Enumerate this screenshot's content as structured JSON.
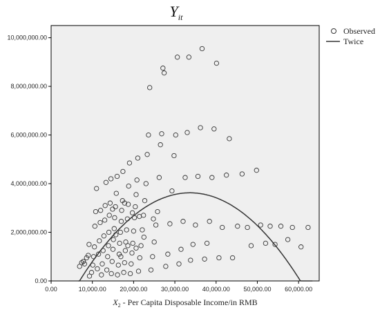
{
  "chart_data": {
    "type": "scatter",
    "title": "Y",
    "title_subscript": "it",
    "xlabel_var": "X",
    "xlabel_subscript": "2",
    "xlabel": " - Per Capita Disposable Income/in RMB",
    "ylabel": "",
    "xlim": [
      0,
      65000
    ],
    "ylim": [
      0,
      10500000
    ],
    "x_ticks": [
      0,
      10000,
      20000,
      30000,
      40000,
      50000,
      60000
    ],
    "x_tick_labels": [
      "0.00",
      "10,000.00",
      "20,000.00",
      "30,000.00",
      "40,000.00",
      "50,000.00",
      "60,000.00"
    ],
    "y_ticks": [
      0,
      2000000,
      4000000,
      6000000,
      8000000,
      10000000
    ],
    "y_tick_labels": [
      "0.00",
      "2,000,000.00",
      "4,000,000.00",
      "6,000,000.00",
      "8,000,000.00",
      "10,000,000.00"
    ],
    "grid": false,
    "legend_position": "top-right outside",
    "colors": {
      "plot_background": "#efefef",
      "marker": "#333333",
      "curve": "#333333"
    },
    "series": [
      {
        "name": "Observed",
        "kind": "points",
        "points": [
          [
            6900,
            600000
          ],
          [
            7400,
            750000
          ],
          [
            7800,
            800000
          ],
          [
            8100,
            700000
          ],
          [
            8600,
            950000
          ],
          [
            9000,
            1050000
          ],
          [
            9200,
            1500000
          ],
          [
            9300,
            200000
          ],
          [
            9800,
            350000
          ],
          [
            10100,
            650000
          ],
          [
            10300,
            1000000
          ],
          [
            10500,
            1400000
          ],
          [
            10600,
            2250000
          ],
          [
            10800,
            2850000
          ],
          [
            11000,
            3800000
          ],
          [
            11200,
            500000
          ],
          [
            11500,
            1100000
          ],
          [
            11700,
            1650000
          ],
          [
            11900,
            2400000
          ],
          [
            12000,
            2900000
          ],
          [
            12200,
            250000
          ],
          [
            12400,
            700000
          ],
          [
            12600,
            1250000
          ],
          [
            12800,
            1850000
          ],
          [
            13000,
            2500000
          ],
          [
            13100,
            3100000
          ],
          [
            13300,
            4050000
          ],
          [
            13500,
            450000
          ],
          [
            13700,
            1000000
          ],
          [
            13900,
            1450000
          ],
          [
            14000,
            2000000
          ],
          [
            14100,
            2700000
          ],
          [
            14300,
            3200000
          ],
          [
            14500,
            4200000
          ],
          [
            14600,
            300000
          ],
          [
            14800,
            800000
          ],
          [
            15000,
            1300000
          ],
          [
            15100,
            1700000
          ],
          [
            15300,
            2150000
          ],
          [
            15400,
            2600000
          ],
          [
            15600,
            3050000
          ],
          [
            15800,
            3600000
          ],
          [
            16000,
            4300000
          ],
          [
            16100,
            250000
          ],
          [
            16300,
            650000
          ],
          [
            16500,
            1100000
          ],
          [
            16600,
            1550000
          ],
          [
            16800,
            2000000
          ],
          [
            17000,
            2450000
          ],
          [
            17100,
            2900000
          ],
          [
            17300,
            3300000
          ],
          [
            17400,
            4500000
          ],
          [
            17600,
            350000
          ],
          [
            17800,
            750000
          ],
          [
            18000,
            1250000
          ],
          [
            18100,
            1600000
          ],
          [
            18300,
            2100000
          ],
          [
            18500,
            2550000
          ],
          [
            18700,
            3150000
          ],
          [
            18800,
            3900000
          ],
          [
            19000,
            4850000
          ],
          [
            19200,
            300000
          ],
          [
            19400,
            700000
          ],
          [
            19600,
            1150000
          ],
          [
            19800,
            1550000
          ],
          [
            20000,
            2050000
          ],
          [
            20200,
            2600000
          ],
          [
            20400,
            3050000
          ],
          [
            20600,
            3550000
          ],
          [
            20800,
            4150000
          ],
          [
            21000,
            5050000
          ],
          [
            21200,
            400000
          ],
          [
            21500,
            950000
          ],
          [
            21800,
            1450000
          ],
          [
            22100,
            2100000
          ],
          [
            22400,
            2700000
          ],
          [
            22700,
            3300000
          ],
          [
            23000,
            4000000
          ],
          [
            23300,
            5200000
          ],
          [
            23600,
            6000000
          ],
          [
            23900,
            7950000
          ],
          [
            24200,
            450000
          ],
          [
            24600,
            1000000
          ],
          [
            25000,
            1600000
          ],
          [
            25400,
            2300000
          ],
          [
            25800,
            2850000
          ],
          [
            26200,
            4250000
          ],
          [
            26500,
            5600000
          ],
          [
            26800,
            6050000
          ],
          [
            27100,
            8750000
          ],
          [
            27400,
            8550000
          ],
          [
            27800,
            600000
          ],
          [
            28300,
            1100000
          ],
          [
            28800,
            2350000
          ],
          [
            29300,
            3700000
          ],
          [
            29800,
            5150000
          ],
          [
            30200,
            6000000
          ],
          [
            30600,
            9200000
          ],
          [
            31000,
            700000
          ],
          [
            31500,
            1300000
          ],
          [
            32000,
            2450000
          ],
          [
            32500,
            4250000
          ],
          [
            33000,
            6100000
          ],
          [
            33400,
            9200000
          ],
          [
            33800,
            850000
          ],
          [
            34400,
            1500000
          ],
          [
            35000,
            2300000
          ],
          [
            35600,
            4300000
          ],
          [
            36200,
            6300000
          ],
          [
            36600,
            9550000
          ],
          [
            37200,
            900000
          ],
          [
            37800,
            1550000
          ],
          [
            38400,
            2450000
          ],
          [
            39000,
            4250000
          ],
          [
            39500,
            6250000
          ],
          [
            40100,
            8950000
          ],
          [
            40700,
            950000
          ],
          [
            41500,
            2200000
          ],
          [
            42500,
            4350000
          ],
          [
            43200,
            5850000
          ],
          [
            44000,
            950000
          ],
          [
            45200,
            2250000
          ],
          [
            46300,
            4400000
          ],
          [
            47600,
            2200000
          ],
          [
            48500,
            1450000
          ],
          [
            49800,
            4550000
          ],
          [
            50800,
            2300000
          ],
          [
            52000,
            1550000
          ],
          [
            53100,
            2250000
          ],
          [
            54300,
            1500000
          ],
          [
            55700,
            2250000
          ],
          [
            57400,
            1700000
          ],
          [
            58500,
            2200000
          ],
          [
            60600,
            1400000
          ],
          [
            62300,
            2200000
          ],
          [
            20600,
            1350000
          ],
          [
            18600,
            1450000
          ],
          [
            16900,
            1000000
          ],
          [
            22500,
            1800000
          ],
          [
            24800,
            2550000
          ],
          [
            14900,
            2950000
          ],
          [
            17800,
            3200000
          ],
          [
            19700,
            2800000
          ],
          [
            21400,
            2650000
          ],
          [
            15700,
            1900000
          ]
        ]
      },
      {
        "name": "Twice",
        "kind": "curve",
        "quadratic": {
          "a": -5050,
          "b": 340,
          "c": -2100000
        },
        "x_range": [
          6600,
          63500
        ]
      }
    ]
  }
}
